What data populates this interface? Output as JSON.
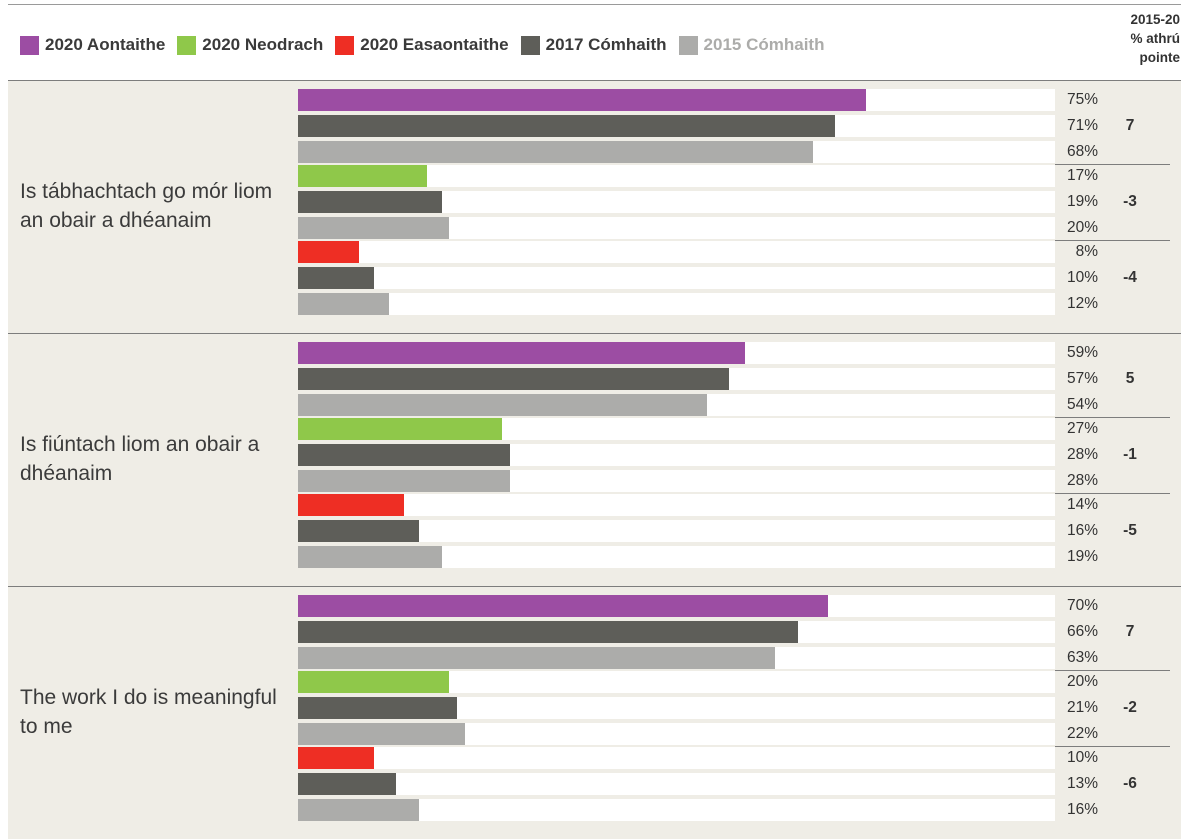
{
  "legend": [
    {
      "label": "2020 Aontaithe",
      "color": "#9c4da3"
    },
    {
      "label": "2020 Neodrach",
      "color": "#8fc84a"
    },
    {
      "label": "2020 Easaontaithe",
      "color": "#ee2e24"
    },
    {
      "label": "2017 Cómhaith",
      "color": "#5e5e59"
    },
    {
      "label": "2015 Cómhaith",
      "color": "#acacaa"
    }
  ],
  "header": {
    "line1": "2015-20",
    "line2": "% athrú",
    "line3": "pointe"
  },
  "chart_data": {
    "type": "bar",
    "orientation": "horizontal",
    "value_suffix": "%",
    "xlim": [
      0,
      100
    ],
    "groups": [
      {
        "label": "Is tábhachtach go mór liom an obair a dhéanaim",
        "subgroups": [
          {
            "response": "2020 Aontaithe",
            "change": "7",
            "bars": [
              {
                "series": "2020 Aontaithe",
                "value": 75,
                "label": "75%"
              },
              {
                "series": "2017 Cómhaith",
                "value": 71,
                "label": "71%"
              },
              {
                "series": "2015 Cómhaith",
                "value": 68,
                "label": "68%"
              }
            ]
          },
          {
            "response": "2020 Neodrach",
            "change": "-3",
            "bars": [
              {
                "series": "2020 Neodrach",
                "value": 17,
                "label": "17%"
              },
              {
                "series": "2017 Cómhaith",
                "value": 19,
                "label": "19%"
              },
              {
                "series": "2015 Cómhaith",
                "value": 20,
                "label": "20%"
              }
            ]
          },
          {
            "response": "2020 Easaontaithe",
            "change": "-4",
            "bars": [
              {
                "series": "2020 Easaontaithe",
                "value": 8,
                "label": "8%"
              },
              {
                "series": "2017 Cómhaith",
                "value": 10,
                "label": "10%"
              },
              {
                "series": "2015 Cómhaith",
                "value": 12,
                "label": "12%"
              }
            ]
          }
        ]
      },
      {
        "label": "Is fiúntach liom an obair a dhéanaim",
        "subgroups": [
          {
            "response": "2020 Aontaithe",
            "change": "5",
            "bars": [
              {
                "series": "2020 Aontaithe",
                "value": 59,
                "label": "59%"
              },
              {
                "series": "2017 Cómhaith",
                "value": 57,
                "label": "57%"
              },
              {
                "series": "2015 Cómhaith",
                "value": 54,
                "label": "54%"
              }
            ]
          },
          {
            "response": "2020 Neodrach",
            "change": "-1",
            "bars": [
              {
                "series": "2020 Neodrach",
                "value": 27,
                "label": "27%"
              },
              {
                "series": "2017 Cómhaith",
                "value": 28,
                "label": "28%"
              },
              {
                "series": "2015 Cómhaith",
                "value": 28,
                "label": "28%"
              }
            ]
          },
          {
            "response": "2020 Easaontaithe",
            "change": "-5",
            "bars": [
              {
                "series": "2020 Easaontaithe",
                "value": 14,
                "label": "14%"
              },
              {
                "series": "2017 Cómhaith",
                "value": 16,
                "label": "16%"
              },
              {
                "series": "2015 Cómhaith",
                "value": 19,
                "label": "19%"
              }
            ]
          }
        ]
      },
      {
        "label": "The work I do is meaningful to me",
        "subgroups": [
          {
            "response": "2020 Aontaithe",
            "change": "7",
            "bars": [
              {
                "series": "2020 Aontaithe",
                "value": 70,
                "label": "70%"
              },
              {
                "series": "2017 Cómhaith",
                "value": 66,
                "label": "66%"
              },
              {
                "series": "2015 Cómhaith",
                "value": 63,
                "label": "63%"
              }
            ]
          },
          {
            "response": "2020 Neodrach",
            "change": "-2",
            "bars": [
              {
                "series": "2020 Neodrach",
                "value": 20,
                "label": "20%"
              },
              {
                "series": "2017 Cómhaith",
                "value": 21,
                "label": "21%"
              },
              {
                "series": "2015 Cómhaith",
                "value": 22,
                "label": "22%"
              }
            ]
          },
          {
            "response": "2020 Easaontaithe",
            "change": "-6",
            "bars": [
              {
                "series": "2020 Easaontaithe",
                "value": 10,
                "label": "10%"
              },
              {
                "series": "2017 Cómhaith",
                "value": 13,
                "label": "13%"
              },
              {
                "series": "2015 Cómhaith",
                "value": 16,
                "label": "16%"
              }
            ]
          }
        ]
      }
    ]
  }
}
